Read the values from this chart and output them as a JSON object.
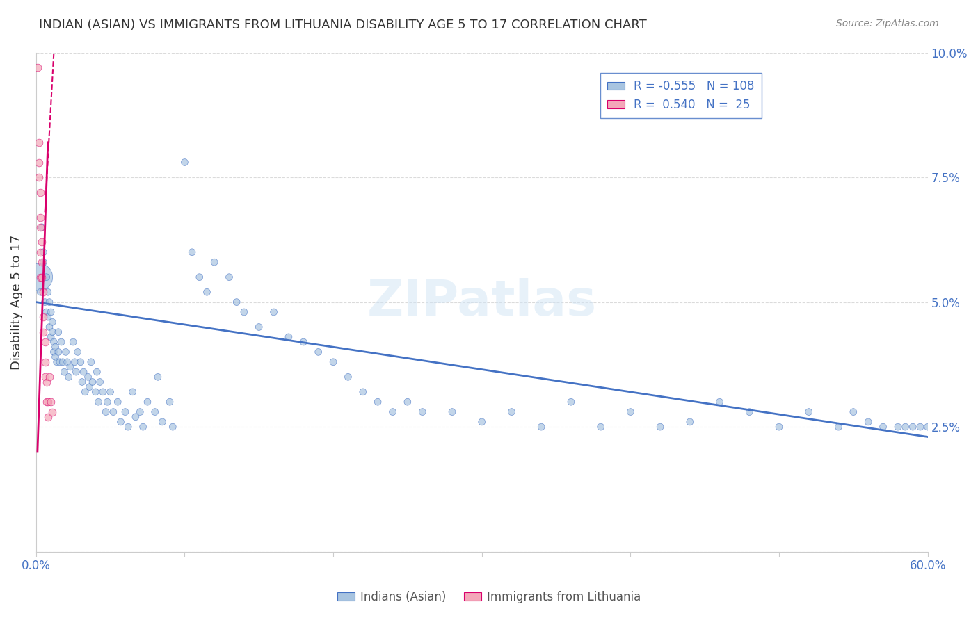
{
  "title": "INDIAN (ASIAN) VS IMMIGRANTS FROM LITHUANIA DISABILITY AGE 5 TO 17 CORRELATION CHART",
  "source": "Source: ZipAtlas.com",
  "ylabel": "Disability Age 5 to 17",
  "xlabel": "",
  "xlim": [
    0.0,
    0.6
  ],
  "ylim": [
    0.0,
    0.1
  ],
  "yticks": [
    0.0,
    0.025,
    0.05,
    0.075,
    0.1
  ],
  "ytick_labels": [
    "",
    "2.5%",
    "5.0%",
    "7.5%",
    "10.0%"
  ],
  "xticks": [
    0.0,
    0.1,
    0.2,
    0.3,
    0.4,
    0.5,
    0.6
  ],
  "xtick_labels": [
    "0.0%",
    "",
    "",
    "",
    "",
    "",
    "60.0%"
  ],
  "legend_r1": "R = -0.555",
  "legend_n1": "N = 108",
  "legend_r2": "R =  0.540",
  "legend_n2": "N =  25",
  "color_blue": "#a8c4e0",
  "color_pink": "#f4a7b9",
  "line_blue": "#4472c4",
  "line_pink": "#d9006c",
  "watermark": "ZIPatlas",
  "indian_x": [
    0.002,
    0.003,
    0.004,
    0.005,
    0.005,
    0.006,
    0.007,
    0.007,
    0.008,
    0.008,
    0.009,
    0.009,
    0.01,
    0.01,
    0.011,
    0.011,
    0.012,
    0.012,
    0.013,
    0.013,
    0.014,
    0.015,
    0.015,
    0.016,
    0.017,
    0.018,
    0.019,
    0.02,
    0.021,
    0.022,
    0.023,
    0.025,
    0.026,
    0.027,
    0.028,
    0.03,
    0.031,
    0.032,
    0.033,
    0.035,
    0.036,
    0.037,
    0.038,
    0.04,
    0.041,
    0.042,
    0.043,
    0.045,
    0.047,
    0.048,
    0.05,
    0.052,
    0.055,
    0.057,
    0.06,
    0.062,
    0.065,
    0.067,
    0.07,
    0.072,
    0.075,
    0.08,
    0.082,
    0.085,
    0.09,
    0.092,
    0.1,
    0.105,
    0.11,
    0.115,
    0.12,
    0.13,
    0.135,
    0.14,
    0.15,
    0.16,
    0.17,
    0.18,
    0.19,
    0.2,
    0.21,
    0.22,
    0.23,
    0.24,
    0.25,
    0.26,
    0.28,
    0.3,
    0.32,
    0.34,
    0.36,
    0.38,
    0.4,
    0.42,
    0.44,
    0.46,
    0.48,
    0.5,
    0.52,
    0.54,
    0.55,
    0.56,
    0.57,
    0.58,
    0.585,
    0.59,
    0.595,
    0.6
  ],
  "indian_y": [
    0.055,
    0.052,
    0.065,
    0.058,
    0.06,
    0.05,
    0.055,
    0.048,
    0.052,
    0.047,
    0.05,
    0.045,
    0.048,
    0.043,
    0.046,
    0.044,
    0.042,
    0.04,
    0.041,
    0.039,
    0.038,
    0.044,
    0.04,
    0.038,
    0.042,
    0.038,
    0.036,
    0.04,
    0.038,
    0.035,
    0.037,
    0.042,
    0.038,
    0.036,
    0.04,
    0.038,
    0.034,
    0.036,
    0.032,
    0.035,
    0.033,
    0.038,
    0.034,
    0.032,
    0.036,
    0.03,
    0.034,
    0.032,
    0.028,
    0.03,
    0.032,
    0.028,
    0.03,
    0.026,
    0.028,
    0.025,
    0.032,
    0.027,
    0.028,
    0.025,
    0.03,
    0.028,
    0.035,
    0.026,
    0.03,
    0.025,
    0.078,
    0.06,
    0.055,
    0.052,
    0.058,
    0.055,
    0.05,
    0.048,
    0.045,
    0.048,
    0.043,
    0.042,
    0.04,
    0.038,
    0.035,
    0.032,
    0.03,
    0.028,
    0.03,
    0.028,
    0.028,
    0.026,
    0.028,
    0.025,
    0.03,
    0.025,
    0.028,
    0.025,
    0.026,
    0.03,
    0.028,
    0.025,
    0.028,
    0.025,
    0.028,
    0.026,
    0.025,
    0.025,
    0.025,
    0.025,
    0.025,
    0.025
  ],
  "indian_size": [
    800,
    50,
    50,
    50,
    50,
    50,
    50,
    50,
    50,
    50,
    50,
    50,
    50,
    50,
    50,
    50,
    50,
    50,
    50,
    50,
    50,
    50,
    50,
    50,
    50,
    50,
    50,
    50,
    50,
    50,
    50,
    50,
    50,
    50,
    50,
    50,
    50,
    50,
    50,
    50,
    50,
    50,
    50,
    50,
    50,
    50,
    50,
    50,
    50,
    50,
    50,
    50,
    50,
    50,
    50,
    50,
    50,
    50,
    50,
    50,
    50,
    50,
    50,
    50,
    50,
    50,
    50,
    50,
    50,
    50,
    50,
    50,
    50,
    50,
    50,
    50,
    50,
    50,
    50,
    50,
    50,
    50,
    50,
    50,
    50,
    50,
    50,
    50,
    50,
    50,
    50,
    50,
    50,
    50,
    50,
    50,
    50,
    50,
    50,
    50,
    50,
    50,
    50,
    50,
    50,
    50,
    50,
    50
  ],
  "lithuania_x": [
    0.001,
    0.002,
    0.002,
    0.002,
    0.003,
    0.003,
    0.003,
    0.003,
    0.003,
    0.004,
    0.004,
    0.004,
    0.005,
    0.005,
    0.005,
    0.006,
    0.006,
    0.006,
    0.007,
    0.007,
    0.008,
    0.008,
    0.009,
    0.01,
    0.011
  ],
  "lithuania_y": [
    0.097,
    0.082,
    0.078,
    0.075,
    0.072,
    0.067,
    0.065,
    0.06,
    0.055,
    0.062,
    0.058,
    0.055,
    0.052,
    0.047,
    0.044,
    0.042,
    0.038,
    0.035,
    0.034,
    0.03,
    0.03,
    0.027,
    0.035,
    0.03,
    0.028
  ],
  "blue_line_x": [
    0.0,
    0.6
  ],
  "blue_line_y": [
    0.05,
    0.023
  ],
  "pink_line_x": [
    0.001,
    0.008
  ],
  "pink_line_y": [
    0.02,
    0.082
  ]
}
